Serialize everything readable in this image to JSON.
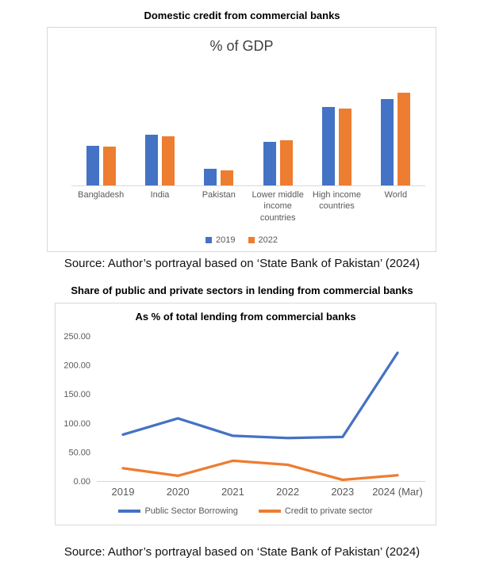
{
  "chart_data": [
    {
      "type": "bar",
      "title": "Domestic credit from commercial banks",
      "subtitle": "% of GDP",
      "categories": [
        "Bangladesh",
        "India",
        "Pakistan",
        "Lower middle income countries",
        "High income countries",
        "World"
      ],
      "series": [
        {
          "name": "2019",
          "color": "#4472C4",
          "values": [
            40,
            51,
            17,
            44,
            79,
            87
          ]
        },
        {
          "name": "2022",
          "color": "#ED7D31",
          "values": [
            39,
            50,
            15,
            46,
            78,
            94
          ]
        }
      ],
      "ylim": [
        0,
        120
      ],
      "grid": false,
      "y_axis_labels_shown": false,
      "legend_position": "bottom"
    },
    {
      "type": "line",
      "title": "Share of public and private sectors in lending from commercial banks",
      "subtitle": "As % of total lending from commercial banks",
      "x": [
        "2019",
        "2020",
        "2021",
        "2022",
        "2023",
        "2024 (Mar)"
      ],
      "series": [
        {
          "name": "Public Sector Borrowing",
          "color": "#4472C4",
          "values": [
            80,
            108,
            78,
            74,
            76,
            221
          ]
        },
        {
          "name": "Credit to private sector",
          "color": "#ED7D31",
          "values": [
            22,
            9,
            35,
            28,
            2,
            10
          ]
        }
      ],
      "ylim": [
        0,
        250
      ],
      "yticks": [
        0,
        50,
        100,
        150,
        200,
        250
      ],
      "ytick_labels": [
        "0.00",
        "50.00",
        "100.00",
        "150.00",
        "200.00",
        "250.00"
      ],
      "grid": false,
      "legend_position": "bottom"
    }
  ],
  "sources": {
    "note1": "Source: Author’s portrayal based on ‘State Bank of Pakistan’ (2024)",
    "note2": "Source: Author’s portrayal based on ‘State Bank of Pakistan’ (2024)"
  },
  "colors": {
    "series_blue": "#4472C4",
    "series_orange": "#ED7D31",
    "axis_gray": "#D9D9D9",
    "label_gray": "#595959"
  }
}
